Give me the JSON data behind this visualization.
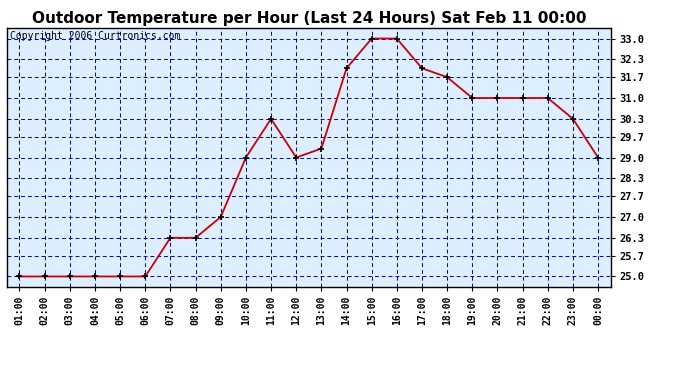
{
  "title": "Outdoor Temperature per Hour (Last 24 Hours) Sat Feb 11 00:00",
  "copyright": "Copyright 2006 Curtronics.com",
  "hours": [
    "01:00",
    "02:00",
    "03:00",
    "04:00",
    "05:00",
    "06:00",
    "07:00",
    "08:00",
    "09:00",
    "10:00",
    "11:00",
    "12:00",
    "13:00",
    "14:00",
    "15:00",
    "16:00",
    "17:00",
    "18:00",
    "19:00",
    "20:00",
    "21:00",
    "22:00",
    "23:00",
    "00:00"
  ],
  "temps": [
    25.0,
    25.0,
    25.0,
    25.0,
    25.0,
    25.0,
    26.3,
    26.3,
    27.0,
    29.0,
    30.3,
    29.0,
    29.3,
    32.0,
    33.0,
    33.0,
    32.0,
    31.7,
    31.0,
    31.0,
    31.0,
    31.0,
    30.3,
    29.0
  ],
  "ylim_min": 24.65,
  "ylim_max": 33.35,
  "yticks": [
    25.0,
    25.7,
    26.3,
    27.0,
    27.7,
    28.3,
    29.0,
    29.7,
    30.3,
    31.0,
    31.7,
    32.3,
    33.0
  ],
  "line_color": "#cc0000",
  "marker_color": "#000000",
  "bg_color": "#ddeeff",
  "outer_bg_color": "#ffffff",
  "grid_color": "#0000bb",
  "border_color": "#000000",
  "title_fontsize": 11,
  "copyright_fontsize": 7
}
